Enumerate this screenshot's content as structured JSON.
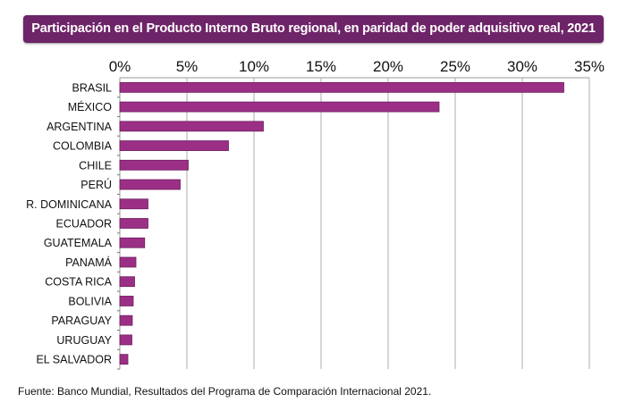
{
  "title": "Participación en el Producto Interno Bruto regional, en paridad de poder adquisitivo real, 2021",
  "source": "Fuente: Banco Mundial, Resultados del Programa de Comparación Internacional 2021.",
  "colors": {
    "bar": "#9b2f85",
    "bar_border": "#6e1f60",
    "title_bg": "#6e2468"
  },
  "chart_data": {
    "type": "bar",
    "orientation": "horizontal",
    "title": "Participación en el Producto Interno Bruto regional, en paridad de poder adquisitivo real, 2021",
    "categories": [
      "BRASIL",
      "MÉXICO",
      "ARGENTINA",
      "COLOMBIA",
      "CHILE",
      "PERÚ",
      "R. DOMINICANA",
      "ECUADOR",
      "GUATEMALA",
      "PANAMÁ",
      "COSTA RICA",
      "BOLIVIA",
      "PARAGUAY",
      "URUGUAY",
      "EL SALVADOR"
    ],
    "values": [
      33.1,
      23.8,
      10.7,
      8.1,
      5.1,
      4.5,
      2.1,
      2.1,
      1.85,
      1.2,
      1.1,
      1.0,
      0.93,
      0.9,
      0.6
    ],
    "xlim": [
      0,
      35
    ],
    "ticks": [
      "0%",
      "5%",
      "10%",
      "15%",
      "20%",
      "25%",
      "30%",
      "35%"
    ],
    "tick_values": [
      0,
      5,
      10,
      15,
      20,
      25,
      30,
      35
    ],
    "axis_position": "top",
    "grid": true,
    "unit": "%"
  }
}
